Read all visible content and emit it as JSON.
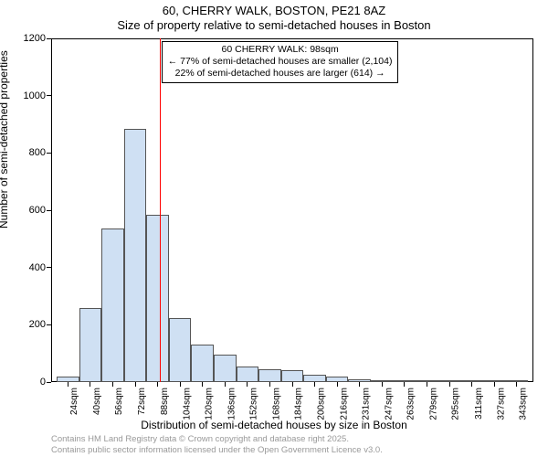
{
  "title_line1": "60, CHERRY WALK, BOSTON, PE21 8AZ",
  "title_line2": "Size of property relative to semi-detached houses in Boston",
  "ylabel": "Number of semi-detached properties",
  "xlabel": "Distribution of semi-detached houses by size in Boston",
  "footer_line1": "Contains HM Land Registry data © Crown copyright and database right 2025.",
  "footer_line2": "Contains public sector information licensed under the Open Government Licence v3.0.",
  "chart": {
    "type": "histogram",
    "plot_bg": "#ffffff",
    "bar_fill": "#cfe0f3",
    "bar_border": "#555555",
    "marker_color": "#ff0000",
    "axis_color": "#000000",
    "font_color": "#000000",
    "footer_color": "#999999",
    "ylim": [
      0,
      1200
    ],
    "ytick_step": 200,
    "yticks": [
      0,
      200,
      400,
      600,
      800,
      1000,
      1200
    ],
    "x_tick_labels": [
      "24sqm",
      "40sqm",
      "56sqm",
      "72sqm",
      "88sqm",
      "104sqm",
      "120sqm",
      "136sqm",
      "152sqm",
      "168sqm",
      "184sqm",
      "200sqm",
      "216sqm",
      "231sqm",
      "247sqm",
      "263sqm",
      "279sqm",
      "295sqm",
      "311sqm",
      "327sqm",
      "343sqm"
    ],
    "bar_values": [
      20,
      260,
      535,
      885,
      585,
      225,
      130,
      95,
      55,
      45,
      40,
      25,
      20,
      10,
      8,
      6,
      6,
      5,
      4,
      3,
      3
    ],
    "bar_width_ratio": 1.0,
    "marker_x_index": 4.63,
    "annotation": {
      "line1": "60 CHERRY WALK: 98sqm",
      "line2": "← 77% of semi-detached houses are smaller (2,104)",
      "line3": "22% of semi-detached houses are larger (614) →",
      "left_index": 4.63,
      "top_value": 1190
    }
  }
}
